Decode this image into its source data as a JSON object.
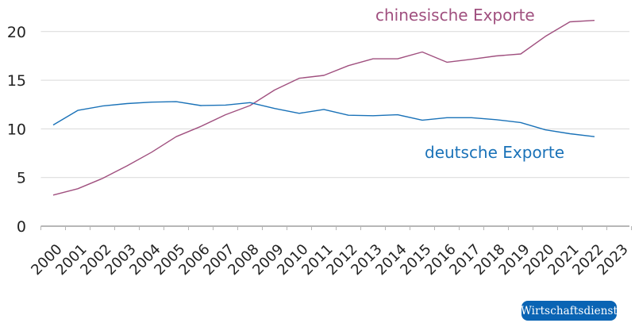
{
  "chart_data": {
    "type": "line",
    "title": "",
    "xlabel": "",
    "ylabel": "",
    "ylim": [
      0,
      22
    ],
    "yticks": [
      0,
      5,
      10,
      15,
      20
    ],
    "grid": true,
    "legend_position": "inline labels",
    "categories": [
      "2000",
      "2001",
      "2002",
      "2003",
      "2004",
      "2005",
      "2006",
      "2007",
      "2008",
      "2009",
      "2010",
      "2011",
      "2012",
      "2013",
      "2014",
      "2015",
      "2016",
      "2017",
      "2018",
      "2019",
      "2020",
      "2021",
      "2022",
      "2023"
    ],
    "series": [
      {
        "name": "chinesische Exporte",
        "color": "#a0507f",
        "values": [
          3.2,
          3.85,
          4.9,
          6.2,
          7.6,
          9.2,
          10.25,
          11.45,
          12.4,
          14.0,
          15.2,
          15.5,
          16.5,
          17.2,
          17.2,
          17.9,
          16.85,
          17.15,
          17.5,
          17.7,
          19.5,
          21.0,
          21.15,
          null
        ]
      },
      {
        "name": "deutsche Exporte",
        "color": "#1a72b8",
        "values": [
          10.4,
          11.9,
          12.35,
          12.6,
          12.75,
          12.8,
          12.4,
          12.45,
          12.7,
          12.1,
          11.6,
          12.0,
          11.4,
          11.35,
          11.45,
          10.9,
          11.15,
          11.15,
          10.95,
          10.65,
          9.9,
          9.5,
          9.2,
          null
        ]
      }
    ],
    "annotations": [
      {
        "text": "chinesische Exporte",
        "series": 0
      },
      {
        "text": "deutsche Exporte",
        "series": 1
      }
    ]
  },
  "labels": {
    "china": "chinesische Exporte",
    "germany": "deutsche Exporte"
  },
  "source_badge": {
    "text": "Wirtschaftsdienst",
    "color": "#0a64b4"
  }
}
